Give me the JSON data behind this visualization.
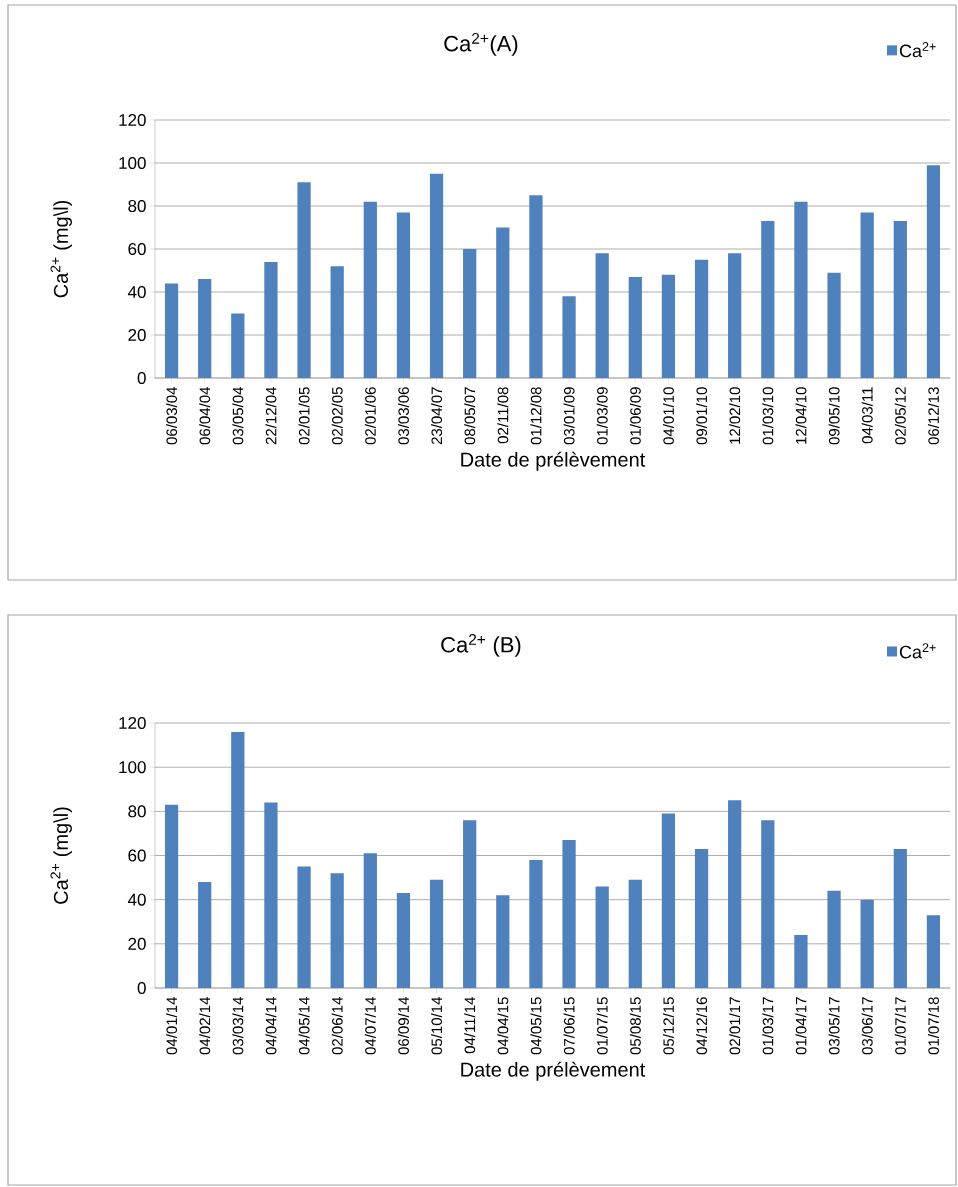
{
  "chart_data": [
    {
      "type": "bar",
      "title": "Ca$^{2+}$(A)",
      "xlabel": "Date de prélèvement",
      "ylabel": "Ca$^{2+}$ (mg\\l)",
      "categories": [
        "06/03/04",
        "06/04/04",
        "03/05/04",
        "22/12/04",
        "02/01/05",
        "02/02/05",
        "02/01/06",
        "03/03/06",
        "23/04/07",
        "08/05/07",
        "02/11/08",
        "01/12/08",
        "03/01/09",
        "01/03/09",
        "01/06/09",
        "04/01/10",
        "09/01/10",
        "12/02/10",
        "01/03/10",
        "12/04/10",
        "09/05/10",
        "04/03/11",
        "02/05/12",
        "06/12/13"
      ],
      "series": [
        {
          "name": "Ca$^{2+}$",
          "color": "#4f81bd",
          "values": [
            44,
            46,
            30,
            54,
            91,
            52,
            82,
            77,
            95,
            60,
            70,
            85,
            38,
            58,
            47,
            48,
            55,
            58,
            73,
            82,
            49,
            77,
            73,
            99
          ]
        }
      ],
      "ylim": [
        0,
        120
      ],
      "yticks": [
        0,
        20,
        40,
        60,
        80,
        100,
        120
      ],
      "grid": "y",
      "legend": "top right"
    },
    {
      "type": "bar",
      "title": "Ca$^{2+}$ (B)",
      "xlabel": "Date de prélèvement",
      "ylabel": "Ca$^{2+}$ (mg\\l)",
      "categories": [
        "04/01/14",
        "04/02/14",
        "03/03/14",
        "04/04/14",
        "04/05/14",
        "02/06/14",
        "04/07/14",
        "06/09/14",
        "05/10/14",
        "04/11/14",
        "04/04/15",
        "04/05/15",
        "07/06/15",
        "01/07/15",
        "05/08/15",
        "05/12/15",
        "04/12/16",
        "02/01/17",
        "01/03/17",
        "01/04/17",
        "03/05/17",
        "03/06/17",
        "01/07/17",
        "01/07/18"
      ],
      "series": [
        {
          "name": "Ca$^{2+}$",
          "color": "#4f81bd",
          "values": [
            83,
            48,
            116,
            84,
            55,
            52,
            61,
            43,
            49,
            76,
            42,
            58,
            67,
            46,
            49,
            79,
            63,
            85,
            76,
            24,
            44,
            40,
            63,
            33
          ]
        }
      ],
      "ylim": [
        0,
        120
      ],
      "yticks": [
        0,
        20,
        40,
        60,
        80,
        100,
        120
      ],
      "grid": "y",
      "legend": "top right"
    }
  ]
}
